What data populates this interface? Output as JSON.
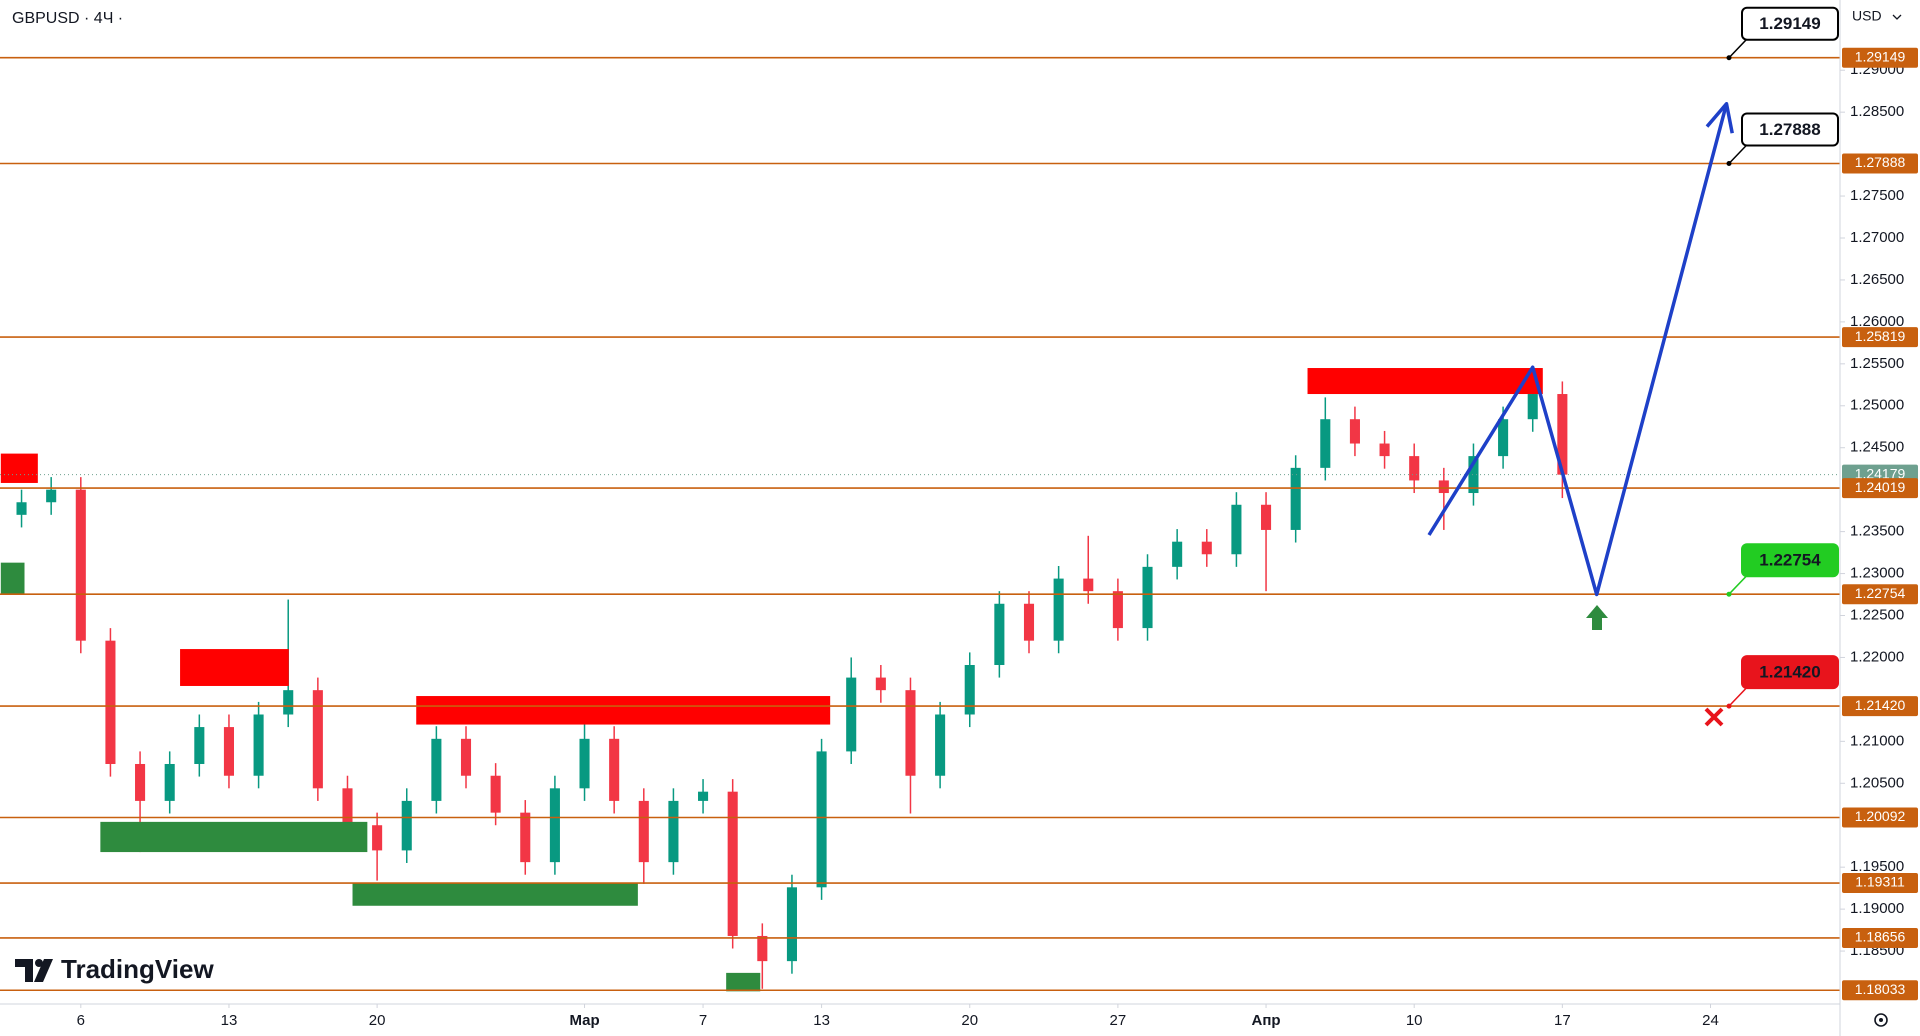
{
  "chart_data": {
    "type": "candlestick",
    "title": "GBPUSD · 4Ч ·",
    "currency_label": "USD",
    "brand": "TradingView",
    "x": [
      -2,
      -1,
      0,
      1,
      2,
      3,
      4,
      5,
      6,
      7,
      8,
      9,
      10,
      11,
      12,
      13,
      14,
      15,
      16,
      17,
      18,
      19,
      20,
      21,
      22,
      23,
      24,
      25,
      26,
      27,
      28,
      29,
      30,
      31,
      32,
      33,
      34,
      35,
      36,
      37,
      38,
      39,
      40,
      41,
      42,
      43,
      44,
      45,
      46,
      47,
      48,
      49,
      50
    ],
    "open": [
      1.237,
      1.2385,
      1.24,
      1.222,
      1.2073,
      1.2029,
      1.2073,
      1.2117,
      1.2059,
      1.2132,
      1.2161,
      1.2044,
      1.2,
      1.197,
      1.2029,
      1.2103,
      1.2059,
      1.2015,
      1.1956,
      1.2044,
      1.2103,
      1.2029,
      1.1956,
      1.2029,
      1.204,
      1.1868,
      1.1838,
      1.1926,
      1.2088,
      1.2176,
      1.2161,
      1.2059,
      1.2132,
      1.2191,
      1.2264,
      1.222,
      1.2294,
      1.2279,
      1.2235,
      1.2308,
      1.2338,
      1.2323,
      1.2382,
      1.2352,
      1.2426,
      1.2484,
      1.2455,
      1.244,
      1.2411,
      1.2396,
      1.244,
      1.2484,
      1.2514
    ],
    "high": [
      1.24,
      1.2415,
      1.2415,
      1.2235,
      1.2088,
      1.2088,
      1.2132,
      1.2132,
      1.2147,
      1.2269,
      1.2176,
      1.2059,
      1.2015,
      1.2044,
      1.2118,
      1.2118,
      1.2074,
      1.203,
      1.2059,
      1.214,
      1.2118,
      1.2044,
      1.2044,
      1.2055,
      1.2055,
      1.1883,
      1.1941,
      1.2103,
      1.22,
      1.2191,
      1.2176,
      1.2147,
      1.2206,
      1.2279,
      1.2279,
      1.2309,
      1.2345,
      1.2294,
      1.2323,
      1.2353,
      1.2353,
      1.2397,
      1.2397,
      1.2441,
      1.251,
      1.2499,
      1.247,
      1.2455,
      1.2426,
      1.2455,
      1.2499,
      1.2545,
      1.2529
    ],
    "low": [
      1.2355,
      1.237,
      1.2205,
      1.2058,
      1.1968,
      1.2014,
      1.2058,
      1.2044,
      1.2044,
      1.2117,
      1.2029,
      1.1985,
      1.1934,
      1.1955,
      1.2014,
      1.2044,
      1.2,
      1.1941,
      1.1941,
      1.2029,
      1.2014,
      1.193,
      1.1941,
      1.2014,
      1.1853,
      1.1805,
      1.1823,
      1.1911,
      1.2073,
      1.2146,
      1.2014,
      1.2044,
      1.2117,
      1.2176,
      1.2205,
      1.2205,
      1.2264,
      1.222,
      1.222,
      1.2293,
      1.2308,
      1.2308,
      1.2279,
      1.2337,
      1.2411,
      1.244,
      1.2425,
      1.2396,
      1.2352,
      1.2381,
      1.2425,
      1.2469,
      1.239
    ],
    "close": [
      1.2385,
      1.24,
      1.222,
      1.2073,
      1.2029,
      1.2073,
      1.2117,
      1.2059,
      1.2132,
      1.2161,
      1.2044,
      1.2,
      1.197,
      1.2029,
      1.2103,
      1.2059,
      1.2015,
      1.1956,
      1.2044,
      1.2103,
      1.2029,
      1.1956,
      1.2029,
      1.204,
      1.1868,
      1.1838,
      1.1926,
      1.2088,
      1.2176,
      1.2161,
      1.2059,
      1.2132,
      1.2191,
      1.2264,
      1.222,
      1.2294,
      1.2279,
      1.2235,
      1.2308,
      1.2338,
      1.2323,
      1.2382,
      1.2352,
      1.2426,
      1.2484,
      1.2455,
      1.244,
      1.2411,
      1.2396,
      1.244,
      1.2484,
      1.2514,
      1.24179
    ],
    "up_color": "#089981",
    "down_color": "#f23645",
    "xlim": [
      -2.727,
      59.37
    ],
    "xticks": [
      {
        "value": 0,
        "label": "6"
      },
      {
        "value": 5,
        "label": "13"
      },
      {
        "value": 10,
        "label": "20"
      },
      {
        "value": 17,
        "label": "Мар"
      },
      {
        "value": 21,
        "label": "7"
      },
      {
        "value": 25,
        "label": "13"
      },
      {
        "value": 30,
        "label": "20"
      },
      {
        "value": 35,
        "label": "27"
      },
      {
        "value": 40,
        "label": "Апр"
      },
      {
        "value": 45,
        "label": "10"
      },
      {
        "value": 50,
        "label": "17"
      },
      {
        "value": 55,
        "label": "24"
      }
    ],
    "ylim": [
      1.17869,
      1.29837
    ],
    "yticks": [
      {
        "value": 1.29,
        "label": "1.29000"
      },
      {
        "value": 1.285,
        "label": "1.28500"
      },
      {
        "value": 1.275,
        "label": "1.27500"
      },
      {
        "value": 1.27,
        "label": "1.27000"
      },
      {
        "value": 1.265,
        "label": "1.26500"
      },
      {
        "value": 1.26,
        "label": "1.26000"
      },
      {
        "value": 1.255,
        "label": "1.25500"
      },
      {
        "value": 1.25,
        "label": "1.25000"
      },
      {
        "value": 1.245,
        "label": "1.24500"
      },
      {
        "value": 1.235,
        "label": "1.23500"
      },
      {
        "value": 1.23,
        "label": "1.23000"
      },
      {
        "value": 1.225,
        "label": "1.22500"
      },
      {
        "value": 1.22,
        "label": "1.22000"
      },
      {
        "value": 1.21,
        "label": "1.21000"
      },
      {
        "value": 1.205,
        "label": "1.20500"
      },
      {
        "value": 1.195,
        "label": "1.19500"
      },
      {
        "value": 1.19,
        "label": "1.19000"
      },
      {
        "value": 1.185,
        "label": "1.18500"
      }
    ],
    "level_color": "#c8600f",
    "levels": [
      {
        "value": 1.29149,
        "label": "1.29149",
        "callout": "#000000"
      },
      {
        "value": 1.27888,
        "label": "1.27888",
        "callout": "#000000"
      },
      {
        "value": 1.25819,
        "label": "1.25819"
      },
      {
        "value": 1.24019,
        "label": "1.24019"
      },
      {
        "value": 1.22754,
        "label": "1.22754",
        "callout": "#22cc22"
      },
      {
        "value": 1.2142,
        "label": "1.21420",
        "callout": "#e8141c"
      },
      {
        "value": 1.20092,
        "label": "1.20092"
      },
      {
        "value": 1.19311,
        "label": "1.19311"
      },
      {
        "value": 1.18656,
        "label": "1.18656"
      },
      {
        "value": 1.18033,
        "label": "1.18033"
      }
    ],
    "current_price": {
      "value": 1.24179,
      "label": "1.24179",
      "color": "#6ea08f"
    },
    "zones": [
      {
        "color": "#ff0000",
        "x": [
          -2.7,
          -1.45
        ],
        "y": [
          1.2408,
          1.2443
        ]
      },
      {
        "color": "#2e8b3e",
        "x": [
          -2.7,
          -1.9
        ],
        "y": [
          1.2276,
          1.2313
        ]
      },
      {
        "color": "#ff0000",
        "x": [
          3.35,
          7.02
        ],
        "y": [
          1.2166,
          1.221
        ]
      },
      {
        "color": "#2e8b3e",
        "x": [
          0.66,
          9.67
        ],
        "y": [
          1.1968,
          1.2004
        ]
      },
      {
        "color": "#ff0000",
        "x": [
          11.32,
          25.29
        ],
        "y": [
          1.212,
          1.2154
        ]
      },
      {
        "color": "#2e8b3e",
        "x": [
          9.17,
          18.8
        ],
        "y": [
          1.1904,
          1.1931
        ]
      },
      {
        "color": "#2e8b3e",
        "x": [
          21.78,
          22.93
        ],
        "y": [
          1.1802,
          1.1824
        ]
      },
      {
        "color": "#ff0000",
        "x": [
          41.4,
          49.34
        ],
        "y": [
          1.2514,
          1.2545
        ]
      }
    ],
    "projection": {
      "color": "#1e40c8",
      "x": [
        45.5,
        49.0,
        51.16,
        55.54
      ],
      "y": [
        1.2346,
        1.2546,
        1.2275,
        1.286
      ]
    }
  }
}
